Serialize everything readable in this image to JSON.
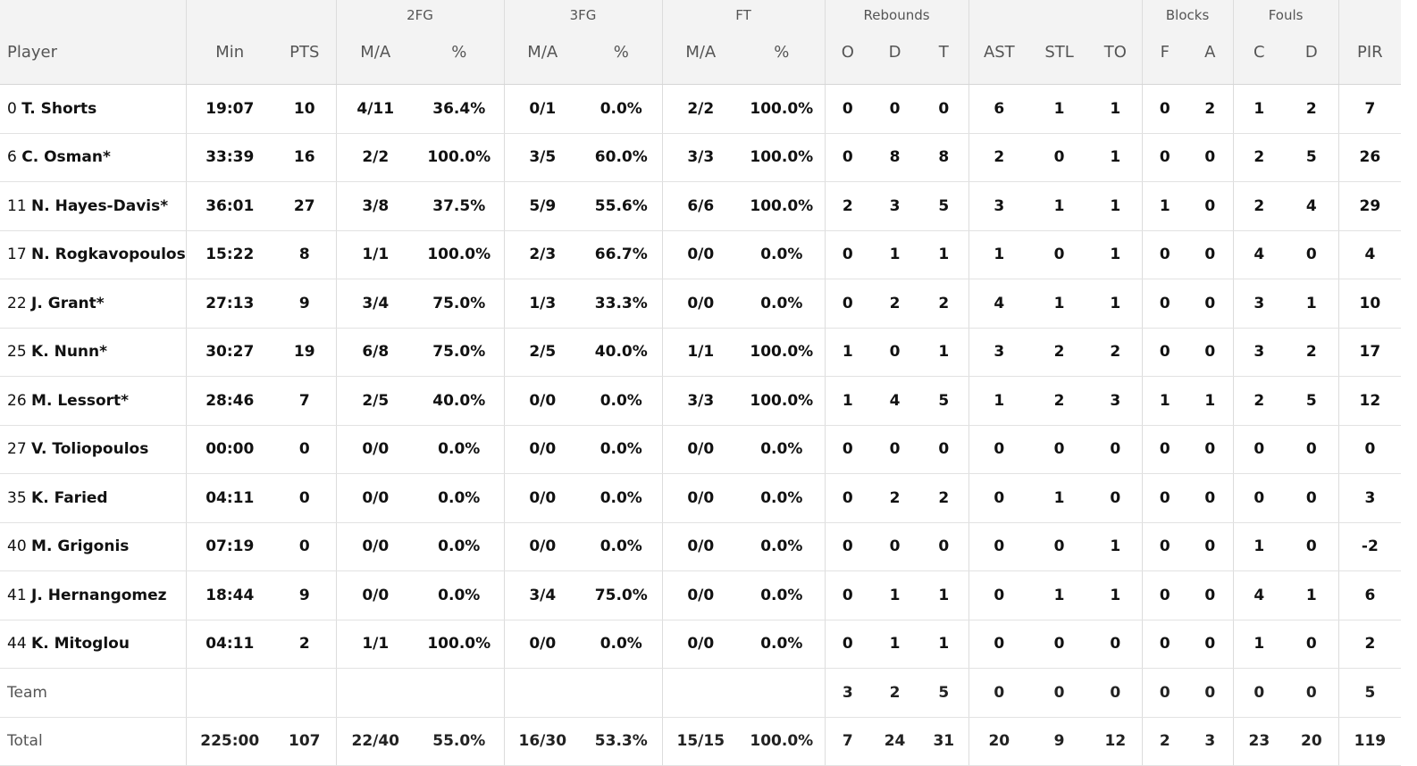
{
  "groups": {
    "fg2": "2FG",
    "fg3": "3FG",
    "ft": "FT",
    "rebounds": "Rebounds",
    "blocks": "Blocks",
    "fouls": "Fouls"
  },
  "columns": {
    "player": "Player",
    "min": "Min",
    "pts": "PTS",
    "fg2_ma": "M/A",
    "fg2_pct": "%",
    "fg3_ma": "M/A",
    "fg3_pct": "%",
    "ft_ma": "M/A",
    "ft_pct": "%",
    "reb_o": "O",
    "reb_d": "D",
    "reb_t": "T",
    "ast": "AST",
    "stl": "STL",
    "to": "TO",
    "blk_f": "F",
    "blk_a": "A",
    "foul_c": "C",
    "foul_d": "D",
    "pir": "PIR"
  },
  "players": [
    {
      "num": "0",
      "name": "T. Shorts",
      "min": "19:07",
      "pts": "10",
      "fg2_ma": "4/11",
      "fg2_pct": "36.4%",
      "fg3_ma": "0/1",
      "fg3_pct": "0.0%",
      "ft_ma": "2/2",
      "ft_pct": "100.0%",
      "reb_o": "0",
      "reb_d": "0",
      "reb_t": "0",
      "ast": "6",
      "stl": "1",
      "to": "1",
      "blk_f": "0",
      "blk_a": "2",
      "foul_c": "1",
      "foul_d": "2",
      "pir": "7"
    },
    {
      "num": "6",
      "name": "C. Osman*",
      "min": "33:39",
      "pts": "16",
      "fg2_ma": "2/2",
      "fg2_pct": "100.0%",
      "fg3_ma": "3/5",
      "fg3_pct": "60.0%",
      "ft_ma": "3/3",
      "ft_pct": "100.0%",
      "reb_o": "0",
      "reb_d": "8",
      "reb_t": "8",
      "ast": "2",
      "stl": "0",
      "to": "1",
      "blk_f": "0",
      "blk_a": "0",
      "foul_c": "2",
      "foul_d": "5",
      "pir": "26"
    },
    {
      "num": "11",
      "name": "N. Hayes-Davis*",
      "min": "36:01",
      "pts": "27",
      "fg2_ma": "3/8",
      "fg2_pct": "37.5%",
      "fg3_ma": "5/9",
      "fg3_pct": "55.6%",
      "ft_ma": "6/6",
      "ft_pct": "100.0%",
      "reb_o": "2",
      "reb_d": "3",
      "reb_t": "5",
      "ast": "3",
      "stl": "1",
      "to": "1",
      "blk_f": "1",
      "blk_a": "0",
      "foul_c": "2",
      "foul_d": "4",
      "pir": "29"
    },
    {
      "num": "17",
      "name": "N. Rogkavopoulos",
      "min": "15:22",
      "pts": "8",
      "fg2_ma": "1/1",
      "fg2_pct": "100.0%",
      "fg3_ma": "2/3",
      "fg3_pct": "66.7%",
      "ft_ma": "0/0",
      "ft_pct": "0.0%",
      "reb_o": "0",
      "reb_d": "1",
      "reb_t": "1",
      "ast": "1",
      "stl": "0",
      "to": "1",
      "blk_f": "0",
      "blk_a": "0",
      "foul_c": "4",
      "foul_d": "0",
      "pir": "4"
    },
    {
      "num": "22",
      "name": "J. Grant*",
      "min": "27:13",
      "pts": "9",
      "fg2_ma": "3/4",
      "fg2_pct": "75.0%",
      "fg3_ma": "1/3",
      "fg3_pct": "33.3%",
      "ft_ma": "0/0",
      "ft_pct": "0.0%",
      "reb_o": "0",
      "reb_d": "2",
      "reb_t": "2",
      "ast": "4",
      "stl": "1",
      "to": "1",
      "blk_f": "0",
      "blk_a": "0",
      "foul_c": "3",
      "foul_d": "1",
      "pir": "10"
    },
    {
      "num": "25",
      "name": "K. Nunn*",
      "min": "30:27",
      "pts": "19",
      "fg2_ma": "6/8",
      "fg2_pct": "75.0%",
      "fg3_ma": "2/5",
      "fg3_pct": "40.0%",
      "ft_ma": "1/1",
      "ft_pct": "100.0%",
      "reb_o": "1",
      "reb_d": "0",
      "reb_t": "1",
      "ast": "3",
      "stl": "2",
      "to": "2",
      "blk_f": "0",
      "blk_a": "0",
      "foul_c": "3",
      "foul_d": "2",
      "pir": "17"
    },
    {
      "num": "26",
      "name": "M. Lessort*",
      "min": "28:46",
      "pts": "7",
      "fg2_ma": "2/5",
      "fg2_pct": "40.0%",
      "fg3_ma": "0/0",
      "fg3_pct": "0.0%",
      "ft_ma": "3/3",
      "ft_pct": "100.0%",
      "reb_o": "1",
      "reb_d": "4",
      "reb_t": "5",
      "ast": "1",
      "stl": "2",
      "to": "3",
      "blk_f": "1",
      "blk_a": "1",
      "foul_c": "2",
      "foul_d": "5",
      "pir": "12"
    },
    {
      "num": "27",
      "name": "V. Toliopoulos",
      "min": "00:00",
      "pts": "0",
      "fg2_ma": "0/0",
      "fg2_pct": "0.0%",
      "fg3_ma": "0/0",
      "fg3_pct": "0.0%",
      "ft_ma": "0/0",
      "ft_pct": "0.0%",
      "reb_o": "0",
      "reb_d": "0",
      "reb_t": "0",
      "ast": "0",
      "stl": "0",
      "to": "0",
      "blk_f": "0",
      "blk_a": "0",
      "foul_c": "0",
      "foul_d": "0",
      "pir": "0"
    },
    {
      "num": "35",
      "name": "K. Faried",
      "min": "04:11",
      "pts": "0",
      "fg2_ma": "0/0",
      "fg2_pct": "0.0%",
      "fg3_ma": "0/0",
      "fg3_pct": "0.0%",
      "ft_ma": "0/0",
      "ft_pct": "0.0%",
      "reb_o": "0",
      "reb_d": "2",
      "reb_t": "2",
      "ast": "0",
      "stl": "1",
      "to": "0",
      "blk_f": "0",
      "blk_a": "0",
      "foul_c": "0",
      "foul_d": "0",
      "pir": "3"
    },
    {
      "num": "40",
      "name": "M. Grigonis",
      "min": "07:19",
      "pts": "0",
      "fg2_ma": "0/0",
      "fg2_pct": "0.0%",
      "fg3_ma": "0/0",
      "fg3_pct": "0.0%",
      "ft_ma": "0/0",
      "ft_pct": "0.0%",
      "reb_o": "0",
      "reb_d": "0",
      "reb_t": "0",
      "ast": "0",
      "stl": "0",
      "to": "1",
      "blk_f": "0",
      "blk_a": "0",
      "foul_c": "1",
      "foul_d": "0",
      "pir": "-2"
    },
    {
      "num": "41",
      "name": "J. Hernangomez",
      "min": "18:44",
      "pts": "9",
      "fg2_ma": "0/0",
      "fg2_pct": "0.0%",
      "fg3_ma": "3/4",
      "fg3_pct": "75.0%",
      "ft_ma": "0/0",
      "ft_pct": "0.0%",
      "reb_o": "0",
      "reb_d": "1",
      "reb_t": "1",
      "ast": "0",
      "stl": "1",
      "to": "1",
      "blk_f": "0",
      "blk_a": "0",
      "foul_c": "4",
      "foul_d": "1",
      "pir": "6"
    },
    {
      "num": "44",
      "name": "K. Mitoglou",
      "min": "04:11",
      "pts": "2",
      "fg2_ma": "1/1",
      "fg2_pct": "100.0%",
      "fg3_ma": "0/0",
      "fg3_pct": "0.0%",
      "ft_ma": "0/0",
      "ft_pct": "0.0%",
      "reb_o": "0",
      "reb_d": "1",
      "reb_t": "1",
      "ast": "0",
      "stl": "0",
      "to": "0",
      "blk_f": "0",
      "blk_a": "0",
      "foul_c": "1",
      "foul_d": "0",
      "pir": "2"
    }
  ],
  "team": {
    "label": "Team",
    "min": "",
    "pts": "",
    "fg2_ma": "",
    "fg2_pct": "",
    "fg3_ma": "",
    "fg3_pct": "",
    "ft_ma": "",
    "ft_pct": "",
    "reb_o": "3",
    "reb_d": "2",
    "reb_t": "5",
    "ast": "0",
    "stl": "0",
    "to": "0",
    "blk_f": "0",
    "blk_a": "0",
    "foul_c": "0",
    "foul_d": "0",
    "pir": "5"
  },
  "total": {
    "label": "Total",
    "min": "225:00",
    "pts": "107",
    "fg2_ma": "22/40",
    "fg2_pct": "55.0%",
    "fg3_ma": "16/30",
    "fg3_pct": "53.3%",
    "ft_ma": "15/15",
    "ft_pct": "100.0%",
    "reb_o": "7",
    "reb_d": "24",
    "reb_t": "31",
    "ast": "20",
    "stl": "9",
    "to": "12",
    "blk_f": "2",
    "blk_a": "3",
    "foul_c": "23",
    "foul_d": "20",
    "pir": "119"
  }
}
